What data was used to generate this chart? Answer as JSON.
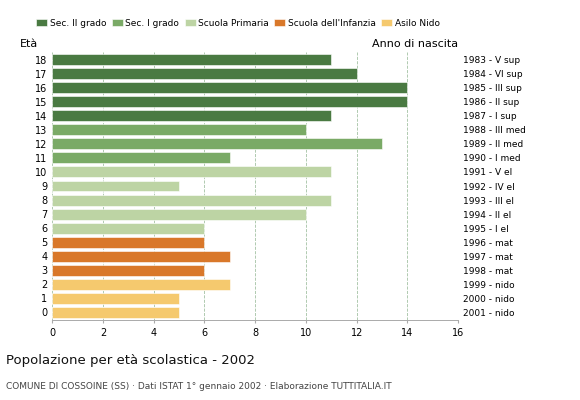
{
  "ages": [
    18,
    17,
    16,
    15,
    14,
    13,
    12,
    11,
    10,
    9,
    8,
    7,
    6,
    5,
    4,
    3,
    2,
    1,
    0
  ],
  "values": [
    11,
    12,
    14,
    14,
    11,
    10,
    13,
    7,
    11,
    5,
    11,
    10,
    6,
    6,
    7,
    6,
    7,
    5,
    5
  ],
  "right_labels": [
    "1983 - V sup",
    "1984 - VI sup",
    "1985 - III sup",
    "1986 - II sup",
    "1987 - I sup",
    "1988 - III med",
    "1989 - II med",
    "1990 - I med",
    "1991 - V el",
    "1992 - IV el",
    "1993 - III el",
    "1994 - II el",
    "1995 - I el",
    "1996 - mat",
    "1997 - mat",
    "1998 - mat",
    "1999 - nido",
    "2000 - nido",
    "2001 - nido"
  ],
  "bar_colors": [
    "#4a7a42",
    "#4a7a42",
    "#4a7a42",
    "#4a7a42",
    "#4a7a42",
    "#7aaa66",
    "#7aaa66",
    "#7aaa66",
    "#bdd4a4",
    "#bdd4a4",
    "#bdd4a4",
    "#bdd4a4",
    "#bdd4a4",
    "#d9782a",
    "#d9782a",
    "#d9782a",
    "#f5c96e",
    "#f5c96e",
    "#f5c96e"
  ],
  "legend_labels": [
    "Sec. II grado",
    "Sec. I grado",
    "Scuola Primaria",
    "Scuola dell'Infanzia",
    "Asilo Nido"
  ],
  "legend_colors": [
    "#4a7a42",
    "#7aaa66",
    "#bdd4a4",
    "#d9782a",
    "#f5c96e"
  ],
  "title": "Popolazione per età scolastica - 2002",
  "subtitle": "COMUNE DI COSSOINE (SS) · Dati ISTAT 1° gennaio 2002 · Elaborazione TUTTITALIA.IT",
  "ylabel": "Età",
  "right_ylabel": "Anno di nascita",
  "xlim": [
    0,
    16
  ],
  "xticks": [
    0,
    2,
    4,
    6,
    8,
    10,
    12,
    14,
    16
  ],
  "ylim": [
    -0.55,
    18.55
  ],
  "background_color": "#ffffff",
  "grid_color": "#99bb99"
}
